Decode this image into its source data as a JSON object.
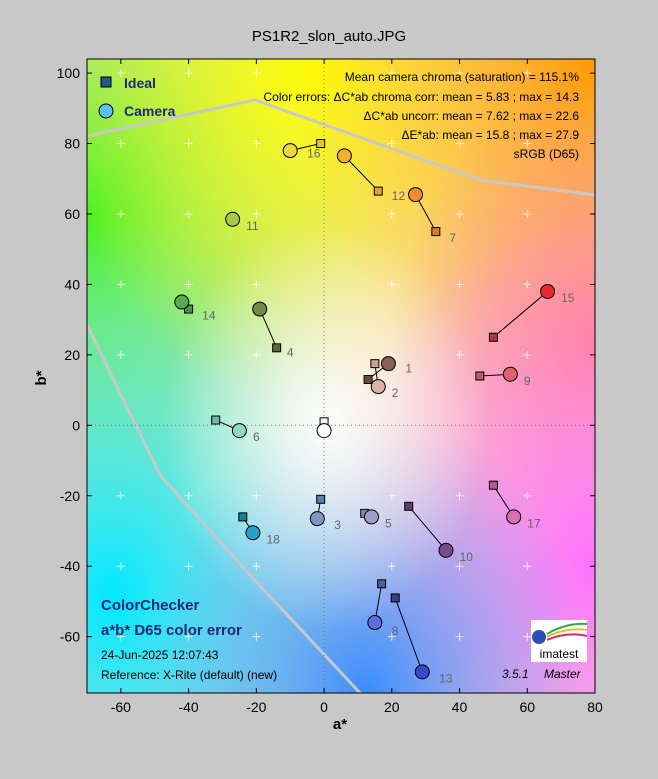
{
  "title": "PS1R2_slon_auto.JPG",
  "legend": {
    "ideal": "Ideal",
    "camera": "Camera"
  },
  "info_lines": [
    "Mean camera chroma (saturation) = 115.1%",
    "Color errors: ΔC*ab chroma corr:  mean = 5.83 ;  max = 14.3",
    "ΔC*ab uncorr:  mean = 7.62 ;  max = 22.6",
    "ΔE*ab:  mean = 15.8 ;  max = 27.9",
    "sRGB (D65)"
  ],
  "bottom_left": {
    "name": "ColorChecker",
    "subtitle": "a*b* D65 color error",
    "date": "24-Jun-2025 12:07:43",
    "reference": "Reference: X-Rite (default) (new)"
  },
  "version": "3.5.1",
  "edition": "Master",
  "logo_text": "imatest",
  "chart_data": {
    "type": "scatter",
    "xlabel": "a*",
    "ylabel": "b*",
    "xlim": [
      -70,
      80
    ],
    "ylim": [
      -76,
      104
    ],
    "xticks": [
      -60,
      -40,
      -20,
      0,
      20,
      40,
      60,
      80
    ],
    "yticks": [
      -60,
      -40,
      -20,
      0,
      20,
      40,
      60,
      80,
      100
    ],
    "patches": [
      {
        "id": "1",
        "ideal": [
          13,
          13
        ],
        "camera": [
          19,
          17.5
        ],
        "ideal_color": "#6b4a40",
        "camera_color": "#8a6055"
      },
      {
        "id": "1b",
        "ideal": [
          15,
          17.5
        ],
        "camera": [
          16,
          11
        ],
        "ideal_color": "#c9a595",
        "camera_color": "#dcb4a6"
      },
      {
        "id": "3",
        "ideal": [
          -1,
          -21
        ],
        "camera": [
          -2,
          -26.5
        ],
        "ideal_color": "#5b7fa8",
        "camera_color": "#7a9ac4"
      },
      {
        "id": "4",
        "ideal": [
          -14,
          22
        ],
        "camera": [
          -19,
          33
        ],
        "ideal_color": "#566b33",
        "camera_color": "#6e8a45"
      },
      {
        "id": "5",
        "ideal": [
          12,
          -25
        ],
        "camera": [
          14,
          -26
        ],
        "ideal_color": "#8583b0",
        "camera_color": "#a09cc8"
      },
      {
        "id": "6",
        "ideal": [
          -32,
          1.5
        ],
        "camera": [
          -25,
          -1.5
        ],
        "ideal_color": "#67bdaa",
        "camera_color": "#8fd8c8"
      },
      {
        "id": "7",
        "ideal": [
          33,
          55
        ],
        "camera": [
          27,
          65.5
        ],
        "ideal_color": "#d67e2c",
        "camera_color": "#f08c30"
      },
      {
        "id": "8",
        "ideal": [
          17,
          -45
        ],
        "camera": [
          15,
          -56
        ],
        "ideal_color": "#505ba6",
        "camera_color": "#5a70e0"
      },
      {
        "id": "9",
        "ideal": [
          46,
          14
        ],
        "camera": [
          55,
          14.5
        ],
        "ideal_color": "#c15a63",
        "camera_color": "#e06070"
      },
      {
        "id": "10",
        "ideal": [
          25,
          -23
        ],
        "camera": [
          36,
          -35.5
        ],
        "ideal_color": "#5e3c6c",
        "camera_color": "#7a4a8c"
      },
      {
        "id": "11",
        "ideal": [
          -27,
          58
        ],
        "camera": [
          -27,
          58.5
        ],
        "ideal_color": "#9dbc40",
        "camera_color": "#a8c848"
      },
      {
        "id": "12",
        "ideal": [
          16,
          66.5
        ],
        "camera": [
          6,
          76.5
        ],
        "ideal_color": "#e0a32e",
        "camera_color": "#f0b030"
      },
      {
        "id": "13",
        "ideal": [
          21,
          -49
        ],
        "camera": [
          29,
          -70
        ],
        "ideal_color": "#383d96",
        "camera_color": "#3a48c8"
      },
      {
        "id": "14",
        "ideal": [
          -40,
          33
        ],
        "camera": [
          -42,
          35
        ],
        "ideal_color": "#469449",
        "camera_color": "#58a855"
      },
      {
        "id": "15",
        "ideal": [
          50,
          25
        ],
        "camera": [
          66,
          38
        ],
        "ideal_color": "#af363c",
        "camera_color": "#e8282e"
      },
      {
        "id": "16",
        "ideal": [
          -1,
          80
        ],
        "camera": [
          -10,
          78
        ],
        "ideal_color": "#e7c71f",
        "camera_color": "#f0d840"
      },
      {
        "id": "17",
        "ideal": [
          50,
          -17
        ],
        "camera": [
          56,
          -26
        ],
        "ideal_color": "#bb5695",
        "camera_color": "#d870b0"
      },
      {
        "id": "18",
        "ideal": [
          -24,
          -26
        ],
        "camera": [
          -21,
          -30.5
        ],
        "ideal_color": "#0885a1",
        "camera_color": "#2aa0c8"
      },
      {
        "id": "w",
        "ideal": [
          0,
          1
        ],
        "camera": [
          0,
          -1.5
        ],
        "ideal_color": "#f0f0f0",
        "camera_color": "#ffffff"
      }
    ],
    "point_labels": [
      {
        "text": "1",
        "pos": [
          24,
          15
        ]
      },
      {
        "text": "2",
        "pos": [
          20,
          8
        ]
      },
      {
        "text": "3",
        "pos": [
          3,
          -29.5
        ]
      },
      {
        "text": "4",
        "pos": [
          -11,
          19.5
        ]
      },
      {
        "text": "5",
        "pos": [
          18,
          -29
        ]
      },
      {
        "text": "6",
        "pos": [
          -21,
          -4.5
        ]
      },
      {
        "text": "7",
        "pos": [
          37,
          52
        ]
      },
      {
        "text": "8",
        "pos": [
          20,
          -59.5
        ]
      },
      {
        "text": "9",
        "pos": [
          59,
          11.5
        ]
      },
      {
        "text": "10",
        "pos": [
          40,
          -38.5
        ]
      },
      {
        "text": "11",
        "pos": [
          -23,
          55.5
        ]
      },
      {
        "text": "12",
        "pos": [
          20,
          64
        ]
      },
      {
        "text": "13",
        "pos": [
          34,
          -73
        ]
      },
      {
        "text": "14",
        "pos": [
          -36,
          30
        ]
      },
      {
        "text": "15",
        "pos": [
          70,
          35
        ]
      },
      {
        "text": "16",
        "pos": [
          -5,
          76
        ]
      },
      {
        "text": "17",
        "pos": [
          60,
          -29
        ]
      },
      {
        "text": "18",
        "pos": [
          -17,
          -33.5
        ]
      }
    ]
  }
}
